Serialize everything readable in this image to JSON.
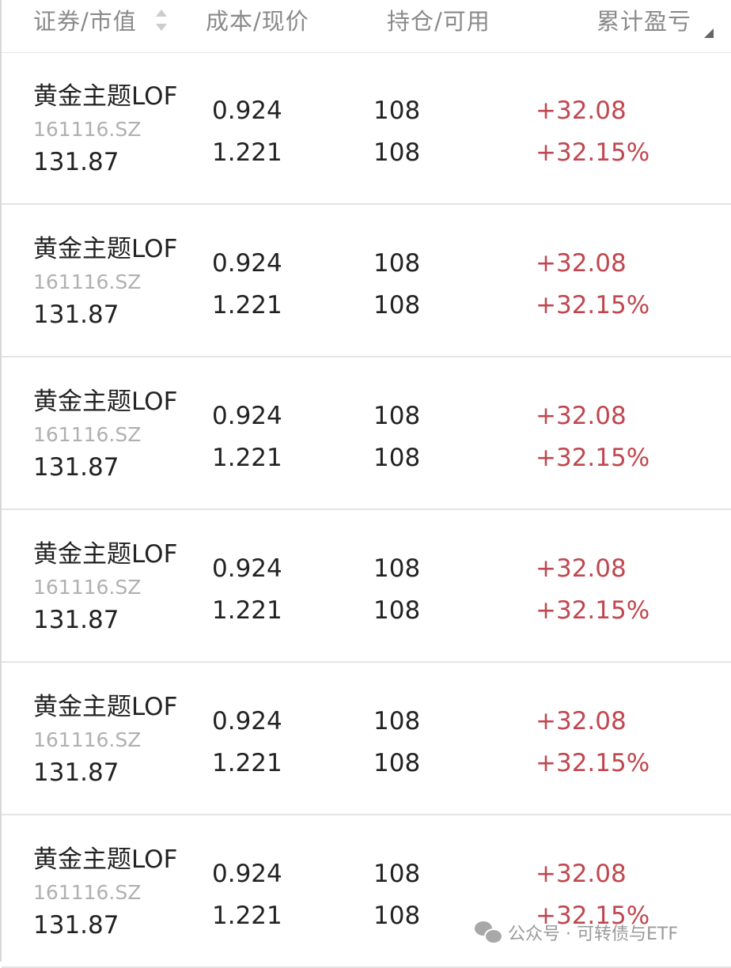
{
  "header": {
    "security": "证券/市值",
    "cost": "成本/现价",
    "position": "持仓/可用",
    "pnl": "累计盈亏"
  },
  "rows": [
    {
      "name": "黄金主题LOF",
      "code": "161116.SZ",
      "market_value": "131.87",
      "cost": "0.924",
      "price": "1.221",
      "holding": "108",
      "available": "108",
      "pnl": "+32.08",
      "pnl_pct": "+32.15%"
    },
    {
      "name": "黄金主题LOF",
      "code": "161116.SZ",
      "market_value": "131.87",
      "cost": "0.924",
      "price": "1.221",
      "holding": "108",
      "available": "108",
      "pnl": "+32.08",
      "pnl_pct": "+32.15%"
    },
    {
      "name": "黄金主题LOF",
      "code": "161116.SZ",
      "market_value": "131.87",
      "cost": "0.924",
      "price": "1.221",
      "holding": "108",
      "available": "108",
      "pnl": "+32.08",
      "pnl_pct": "+32.15%"
    },
    {
      "name": "黄金主题LOF",
      "code": "161116.SZ",
      "market_value": "131.87",
      "cost": "0.924",
      "price": "1.221",
      "holding": "108",
      "available": "108",
      "pnl": "+32.08",
      "pnl_pct": "+32.15%"
    },
    {
      "name": "黄金主题LOF",
      "code": "161116.SZ",
      "market_value": "131.87",
      "cost": "0.924",
      "price": "1.221",
      "holding": "108",
      "available": "108",
      "pnl": "+32.08",
      "pnl_pct": "+32.15%"
    },
    {
      "name": "黄金主题LOF",
      "code": "161116.SZ",
      "market_value": "131.87",
      "cost": "0.924",
      "price": "1.221",
      "holding": "108",
      "available": "108",
      "pnl": "+32.08",
      "pnl_pct": "+32.15%"
    }
  ],
  "watermark": "公众号 · 可转债与ETF",
  "colors": {
    "gain": "#c0474f",
    "header_text": "#8a8a8a"
  },
  "icons": {
    "sort": "sort-arrows-icon",
    "wechat": "wechat-icon"
  }
}
